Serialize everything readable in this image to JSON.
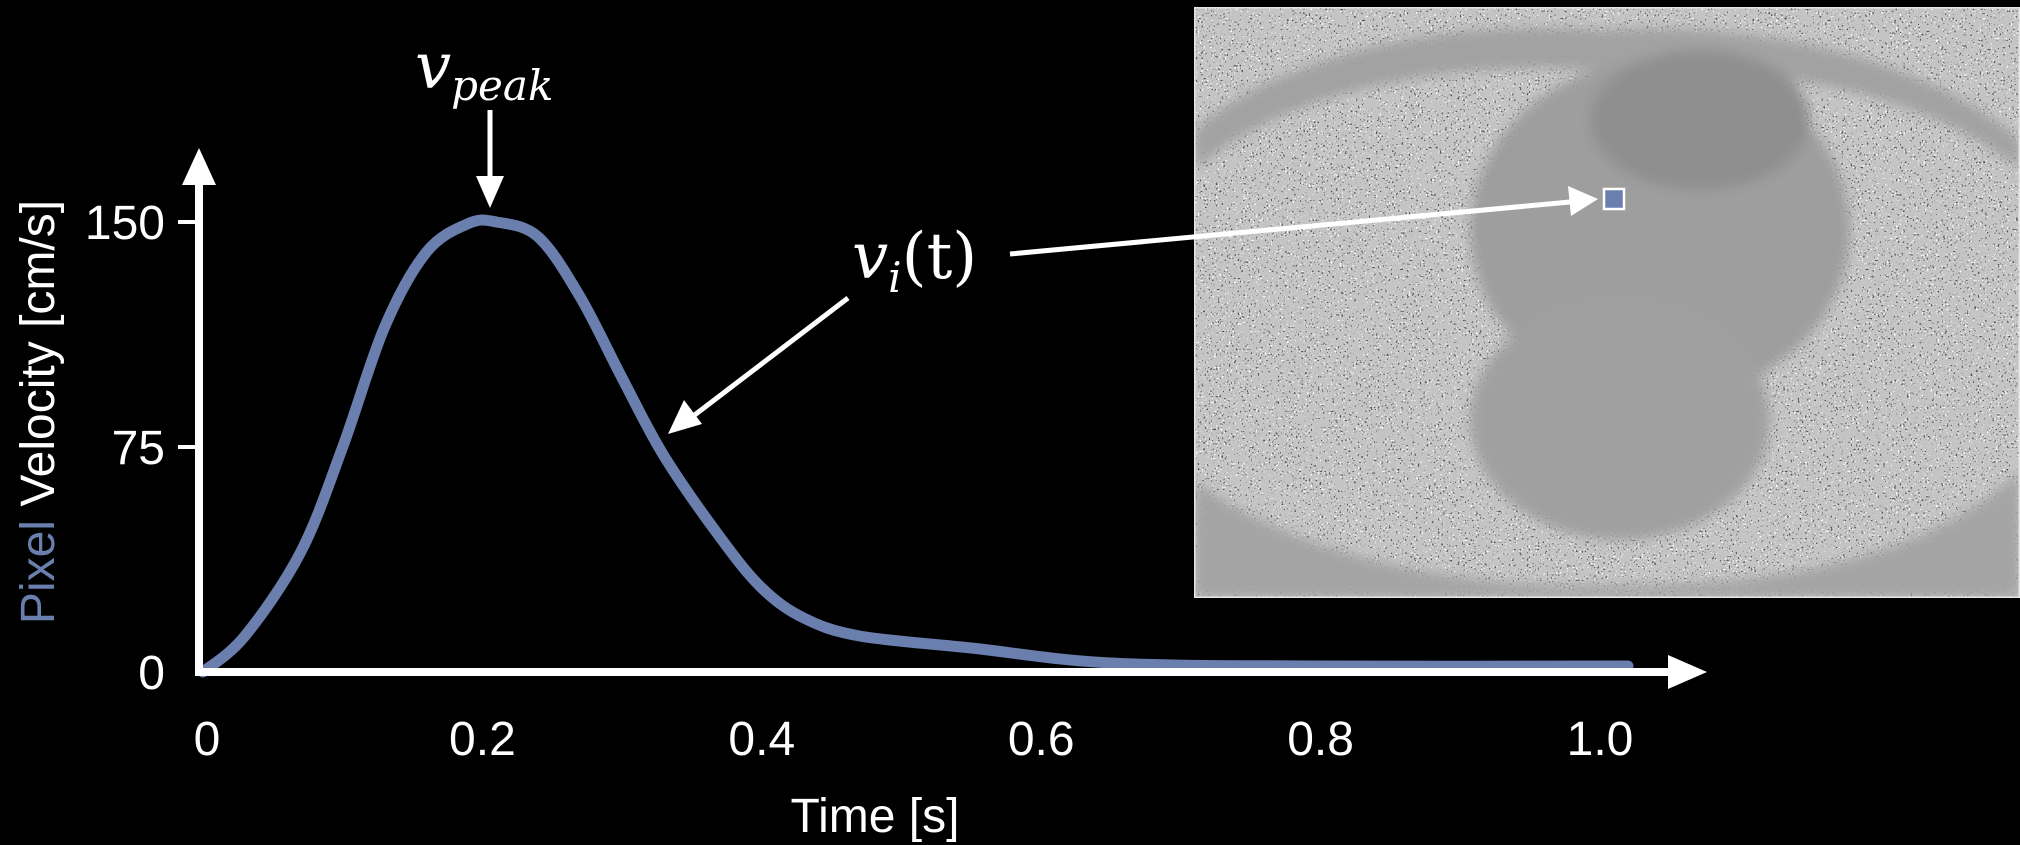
{
  "chart_data": {
    "type": "line",
    "xlabel": "Time [s]",
    "ylabel_prefix": "Pixel",
    "ylabel_rest": " Velocity [cm/s]",
    "xlim": [
      0,
      1.0
    ],
    "ylim": [
      0,
      150
    ],
    "xticks": [
      {
        "v": 0,
        "label": "0"
      },
      {
        "v": 0.2,
        "label": "0.2"
      },
      {
        "v": 0.4,
        "label": "0.4"
      },
      {
        "v": 0.6,
        "label": "0.6"
      },
      {
        "v": 0.8,
        "label": "0.8"
      },
      {
        "v": 1.0,
        "label": "1.0"
      }
    ],
    "yticks": [
      {
        "v": 0,
        "label": "0"
      },
      {
        "v": 75,
        "label": "75"
      },
      {
        "v": 150,
        "label": "150"
      }
    ],
    "grid": false,
    "series": [
      {
        "color": "#6a7fae",
        "x": [
          0,
          0.03,
          0.07,
          0.1,
          0.13,
          0.16,
          0.19,
          0.21,
          0.24,
          0.27,
          0.3,
          0.33,
          0.37,
          0.4,
          0.43,
          0.47,
          0.55,
          0.65,
          0.8,
          1.02
        ],
        "y": [
          0,
          12,
          40,
          75,
          115,
          140,
          149.5,
          150,
          145,
          125,
          98,
          72,
          45,
          28,
          18,
          12,
          8,
          3,
          2,
          2
        ]
      }
    ],
    "annotations": {
      "peak_label_base": "v",
      "peak_label_sub": "peak",
      "curve_label_base": "v",
      "curve_label_sub": "i",
      "curve_label_arg": "(t)"
    },
    "inset": {
      "kind": "grayscale phase-contrast MR image (noise texture)",
      "marker_color": "#6a7fae"
    }
  }
}
